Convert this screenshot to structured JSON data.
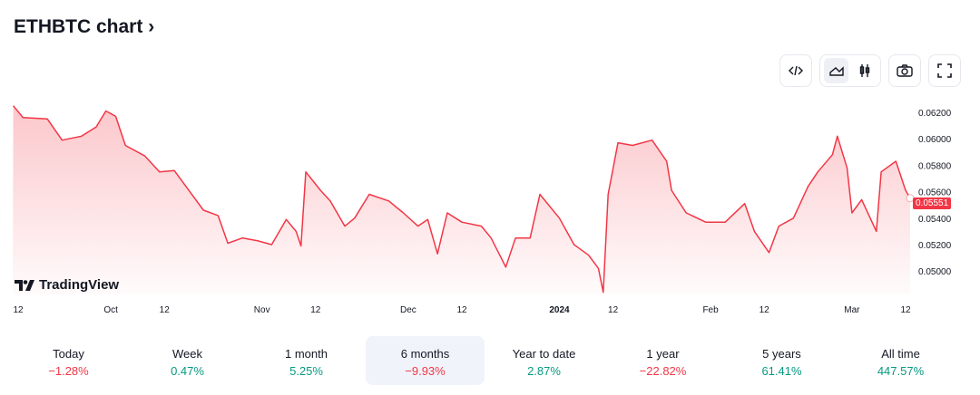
{
  "header": {
    "title": "ETHBTC chart",
    "chevron": "›"
  },
  "toolbar": {
    "buttons": [
      {
        "name": "embed-code-icon",
        "active": false
      },
      {
        "name": "area-chart-icon",
        "active": true
      },
      {
        "name": "candlestick-icon",
        "active": false
      },
      {
        "name": "camera-icon",
        "active": false
      },
      {
        "name": "fullscreen-icon",
        "active": false
      }
    ]
  },
  "logo": {
    "text": "TradingView"
  },
  "colors": {
    "line": "#f23645",
    "positive": "#089981",
    "negative": "#f23645",
    "active_bg": "#f0f3fa"
  },
  "chart_data": {
    "type": "area",
    "symbol": "ETHBTC",
    "last_price": "0.05551",
    "ylim": [
      0.0484,
      0.0632
    ],
    "y_ticks": [
      "0.06200",
      "0.06000",
      "0.05800",
      "0.05600",
      "0.05400",
      "0.05200",
      "0.05000"
    ],
    "x_ticks": [
      {
        "label": "12",
        "date": "2023-09-12"
      },
      {
        "label": "Oct",
        "date": "2023-10-01"
      },
      {
        "label": "12",
        "date": "2023-10-12"
      },
      {
        "label": "Nov",
        "date": "2023-11-01"
      },
      {
        "label": "12",
        "date": "2023-11-12"
      },
      {
        "label": "Dec",
        "date": "2023-12-01"
      },
      {
        "label": "12",
        "date": "2023-12-12"
      },
      {
        "label": "2024",
        "date": "2024-01-01",
        "bold": true
      },
      {
        "label": "12",
        "date": "2024-01-12"
      },
      {
        "label": "Feb",
        "date": "2024-02-01"
      },
      {
        "label": "12",
        "date": "2024-02-12"
      },
      {
        "label": "Mar",
        "date": "2024-03-01"
      },
      {
        "label": "12",
        "date": "2024-03-12"
      }
    ],
    "x": [
      "2023-09-11",
      "2023-09-13",
      "2023-09-18",
      "2023-09-21",
      "2023-09-25",
      "2023-09-28",
      "2023-09-30",
      "2023-10-02",
      "2023-10-04",
      "2023-10-08",
      "2023-10-11",
      "2023-10-14",
      "2023-10-17",
      "2023-10-20",
      "2023-10-23",
      "2023-10-25",
      "2023-10-28",
      "2023-10-31",
      "2023-11-03",
      "2023-11-06",
      "2023-11-08",
      "2023-11-09",
      "2023-11-10",
      "2023-11-13",
      "2023-11-15",
      "2023-11-18",
      "2023-11-20",
      "2023-11-23",
      "2023-11-27",
      "2023-11-30",
      "2023-12-03",
      "2023-12-05",
      "2023-12-07",
      "2023-12-09",
      "2023-12-12",
      "2023-12-16",
      "2023-12-18",
      "2023-12-21",
      "2023-12-23",
      "2023-12-26",
      "2023-12-28",
      "2024-01-01",
      "2024-01-04",
      "2024-01-07",
      "2024-01-09",
      "2024-01-10",
      "2024-01-11",
      "2024-01-13",
      "2024-01-16",
      "2024-01-20",
      "2024-01-23",
      "2024-01-24",
      "2024-01-27",
      "2024-01-31",
      "2024-02-04",
      "2024-02-08",
      "2024-02-10",
      "2024-02-13",
      "2024-02-15",
      "2024-02-18",
      "2024-02-21",
      "2024-02-23",
      "2024-02-26",
      "2024-02-27",
      "2024-02-29",
      "2024-03-01",
      "2024-03-03",
      "2024-03-06",
      "2024-03-07",
      "2024-03-10",
      "2024-03-12",
      "2024-03-13"
    ],
    "values": [
      0.0625,
      0.0616,
      0.0615,
      0.0599,
      0.0602,
      0.0609,
      0.0621,
      0.0617,
      0.0595,
      0.0587,
      0.0575,
      0.0576,
      0.0561,
      0.0546,
      0.0542,
      0.0521,
      0.0525,
      0.0523,
      0.052,
      0.0539,
      0.053,
      0.0519,
      0.0575,
      0.0561,
      0.0553,
      0.0534,
      0.054,
      0.0558,
      0.0553,
      0.0544,
      0.0534,
      0.0539,
      0.0513,
      0.0544,
      0.0537,
      0.0534,
      0.0525,
      0.0503,
      0.0525,
      0.0525,
      0.0558,
      0.054,
      0.052,
      0.0512,
      0.0502,
      0.0484,
      0.0558,
      0.0597,
      0.0595,
      0.0599,
      0.0583,
      0.0561,
      0.0544,
      0.0537,
      0.0537,
      0.0551,
      0.053,
      0.0514,
      0.0534,
      0.054,
      0.0564,
      0.0575,
      0.0588,
      0.0602,
      0.0578,
      0.0544,
      0.0554,
      0.053,
      0.0575,
      0.0583,
      0.0561,
      0.05551
    ]
  },
  "stats": [
    {
      "label": "Today",
      "value": "−1.28%",
      "dir": "neg"
    },
    {
      "label": "Week",
      "value": "0.47%",
      "dir": "pos"
    },
    {
      "label": "1 month",
      "value": "5.25%",
      "dir": "pos"
    },
    {
      "label": "6 months",
      "value": "−9.93%",
      "dir": "neg",
      "active": true
    },
    {
      "label": "Year to date",
      "value": "2.87%",
      "dir": "pos"
    },
    {
      "label": "1 year",
      "value": "−22.82%",
      "dir": "neg"
    },
    {
      "label": "5 years",
      "value": "61.41%",
      "dir": "pos"
    },
    {
      "label": "All time",
      "value": "447.57%",
      "dir": "pos"
    }
  ]
}
